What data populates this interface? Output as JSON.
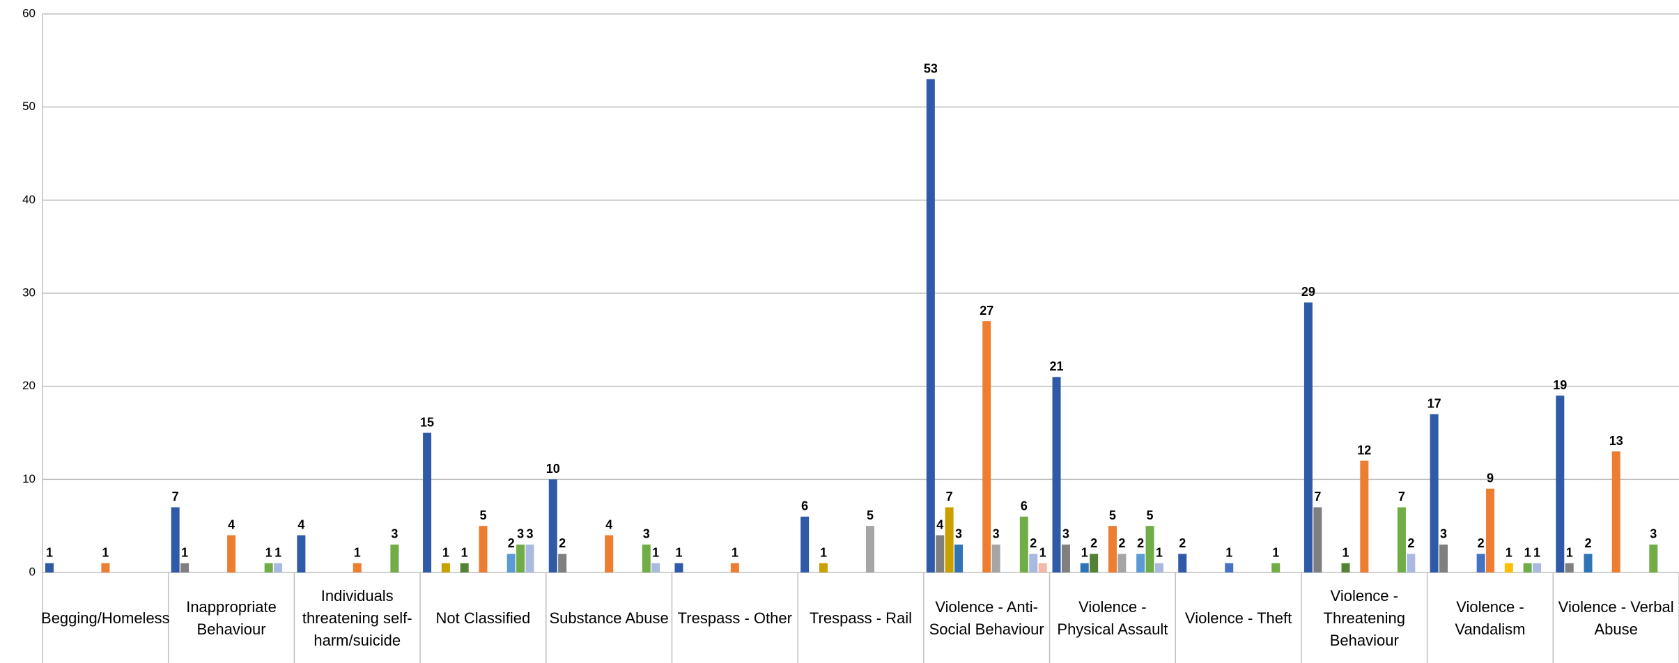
{
  "chart_data": {
    "type": "bar",
    "categories": [
      "Begging/Homeless",
      "Inappropriate Behaviour",
      "Individuals threatening self-harm/suicide",
      "Not Classified",
      "Substance Abuse",
      "Trespass - Other",
      "Trespass - Rail",
      "Violence - Anti-Social Behaviour",
      "Violence - Physical Assault",
      "Violence - Theft",
      "Violence - Threatening Behaviour",
      "Violence - Vandalism",
      "Violence - Verbal Abuse"
    ],
    "series": [
      {
        "color": "#2e5aa7",
        "values": [
          1,
          7,
          4,
          15,
          10,
          1,
          6,
          53,
          21,
          2,
          29,
          17,
          19
        ]
      },
      {
        "color": "#7f7f7f",
        "values": [
          null,
          1,
          null,
          null,
          2,
          null,
          null,
          4,
          3,
          null,
          7,
          3,
          1
        ]
      },
      {
        "color": "#c9a000",
        "values": [
          null,
          null,
          null,
          1,
          null,
          null,
          1,
          7,
          null,
          null,
          null,
          null,
          null
        ]
      },
      {
        "color": "#2f75b5",
        "values": [
          null,
          null,
          null,
          null,
          null,
          null,
          null,
          3,
          1,
          null,
          null,
          null,
          2
        ]
      },
      {
        "color": "#548235",
        "values": [
          null,
          null,
          null,
          1,
          null,
          null,
          null,
          null,
          2,
          null,
          1,
          null,
          null
        ]
      },
      {
        "color": "#4472c4",
        "values": [
          null,
          null,
          null,
          null,
          null,
          null,
          null,
          null,
          null,
          1,
          null,
          2,
          null
        ]
      },
      {
        "color": "#ed7d31",
        "values": [
          1,
          4,
          1,
          5,
          4,
          1,
          null,
          27,
          5,
          null,
          12,
          9,
          13
        ]
      },
      {
        "color": "#a5a5a5",
        "values": [
          null,
          null,
          null,
          null,
          null,
          null,
          5,
          3,
          2,
          null,
          null,
          null,
          null
        ]
      },
      {
        "color": "#ffc000",
        "values": [
          null,
          null,
          null,
          null,
          null,
          null,
          null,
          null,
          null,
          null,
          null,
          1,
          null
        ]
      },
      {
        "color": "#5b9bd5",
        "values": [
          null,
          null,
          null,
          2,
          null,
          null,
          null,
          null,
          2,
          null,
          null,
          null,
          null
        ]
      },
      {
        "color": "#70ad47",
        "values": [
          null,
          1,
          3,
          3,
          3,
          null,
          null,
          6,
          5,
          1,
          7,
          1,
          3
        ]
      },
      {
        "color": "#a9b9e0",
        "values": [
          null,
          1,
          null,
          3,
          1,
          null,
          null,
          2,
          1,
          null,
          2,
          1,
          null
        ]
      },
      {
        "color": "#f4b8a8",
        "values": [
          null,
          null,
          null,
          null,
          null,
          null,
          null,
          1,
          null,
          null,
          null,
          null,
          null
        ]
      }
    ],
    "ylim": [
      0,
      60
    ],
    "yticks": [
      0,
      10,
      20,
      30,
      40,
      50,
      60
    ],
    "grid": true
  }
}
